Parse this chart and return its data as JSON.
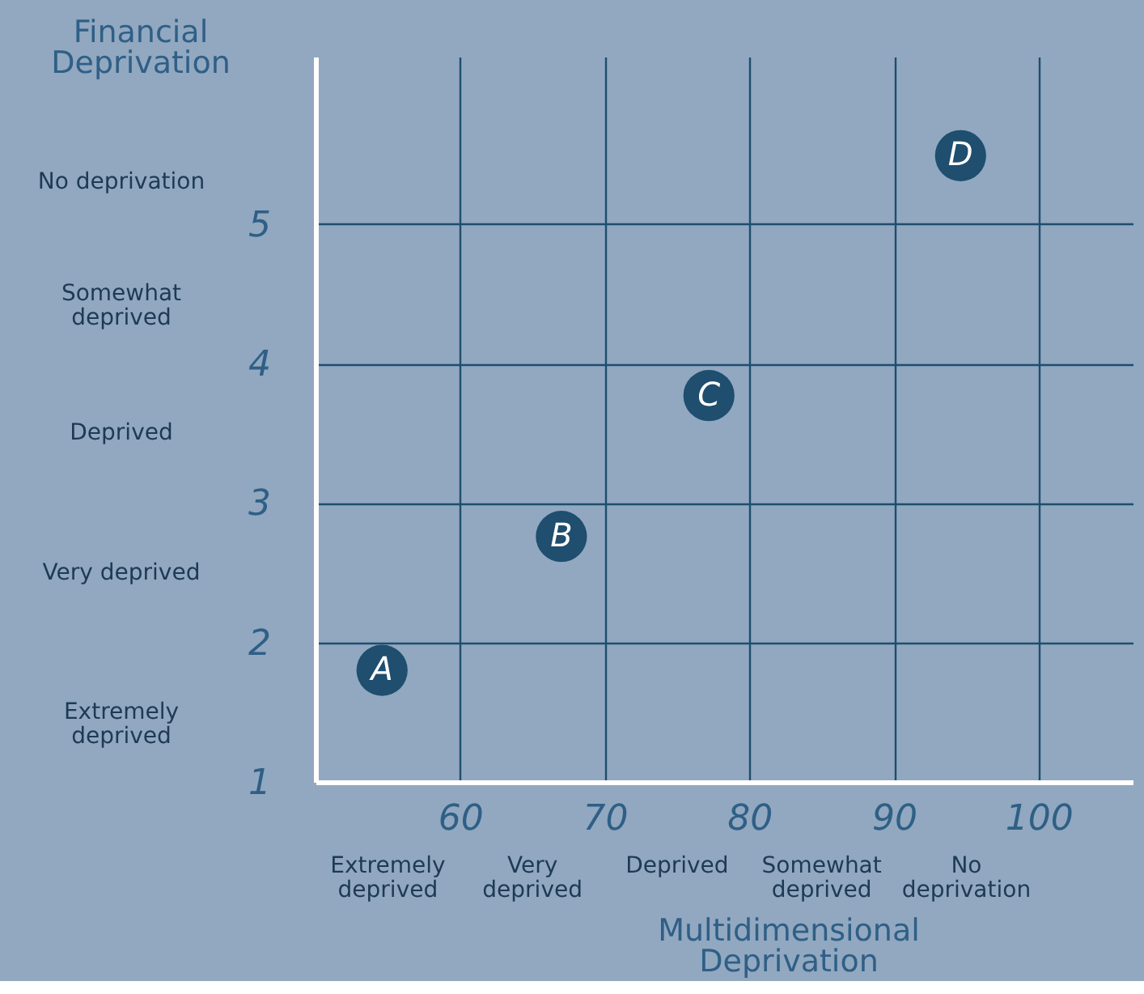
{
  "chart_data": {
    "type": "scatter",
    "xlabel": "Multidimensional Deprivation",
    "ylabel": "Financial Deprivation",
    "series": [
      {
        "name": "A",
        "color": "#1f4e6e",
        "x": [
          54.6
        ],
        "values": [
          1.8
        ]
      },
      {
        "name": "B",
        "color": "#1f4e6e",
        "x": [
          67
        ],
        "values": [
          2.76
        ]
      },
      {
        "name": "C",
        "color": "#1f4e6e",
        "x": [
          77.2
        ],
        "values": [
          3.77
        ]
      },
      {
        "name": "D",
        "color": "#1f4e6e",
        "x": [
          94.6
        ],
        "values": [
          5.49
        ]
      }
    ],
    "xlim": [
      50,
      106.5
    ],
    "xticks": [
      60,
      70,
      80,
      90,
      100
    ],
    "ylim": [
      1,
      6.2
    ],
    "yticks": [
      1,
      2,
      3,
      4,
      5
    ],
    "annotations": [
      "Extremely deprived",
      "Very deprived",
      "Deprived",
      "Somewhat deprived",
      "No deprivation",
      "Extremely deprived",
      "Very deprived",
      "Deprived",
      "Somewhat deprived",
      "No deprivation"
    ],
    "grid": true,
    "legend": false,
    "marker": "circle"
  }
}
